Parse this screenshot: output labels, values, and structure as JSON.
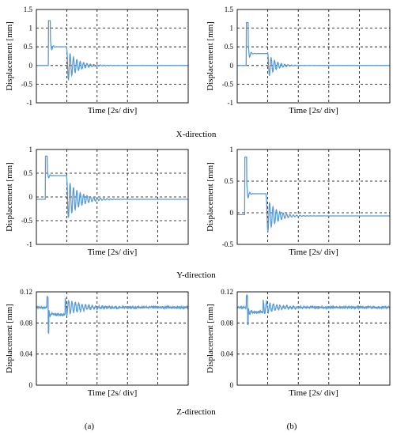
{
  "time_axis_label": "Time [2s/ div]",
  "row_captions": [
    "X-direction",
    "Y-direction",
    "Z-direction"
  ],
  "column_labels": [
    "(a)",
    "(b)"
  ],
  "chart_data": [
    {
      "id": "x-a",
      "type": "line",
      "ylabel": "Displacement [mm]",
      "xlabel": "Time [2s/ div]",
      "xlim": [
        0,
        5
      ],
      "ylim": [
        -1,
        1.5
      ],
      "yticks": [
        "1.5",
        "1",
        "0.5",
        "0",
        "-0.5",
        "-1"
      ],
      "grid": true,
      "line_color": "#5b9bd5",
      "signal": {
        "baseline": 0.0,
        "step_at": 0.4,
        "spike": 1.2,
        "plateau": 0.5,
        "release_at": 1.0,
        "final": 0.0,
        "decay_amp": 0.45,
        "decay_tau": 0.32,
        "cycles_per_div": 9
      }
    },
    {
      "id": "x-b",
      "type": "line",
      "ylabel": "Displacement [mm]",
      "xlabel": "Time [2s/ div]",
      "xlim": [
        0,
        5
      ],
      "ylim": [
        -1,
        1.5
      ],
      "yticks": [
        "1.5",
        "1",
        "0.5",
        "0",
        "-0.5",
        "-1"
      ],
      "grid": true,
      "line_color": "#5b9bd5",
      "signal": {
        "baseline": 0.0,
        "step_at": 0.3,
        "spike": 1.15,
        "plateau": 0.32,
        "release_at": 1.0,
        "final": 0.0,
        "decay_amp": 0.33,
        "decay_tau": 0.25,
        "cycles_per_div": 9
      }
    },
    {
      "id": "y-a",
      "type": "line",
      "ylabel": "Displacement [mm]",
      "xlabel": "Time [2s/ div]",
      "xlim": [
        0,
        5
      ],
      "ylim": [
        -1,
        1
      ],
      "yticks": [
        "1",
        "0.5",
        "0",
        "-0.5",
        "-1"
      ],
      "grid": true,
      "line_color": "#5b9bd5",
      "signal": {
        "baseline": -0.05,
        "step_at": 0.3,
        "spike": 0.86,
        "plateau": 0.45,
        "release_at": 1.0,
        "final": -0.05,
        "decay_amp": 0.45,
        "decay_tau": 0.38,
        "cycles_per_div": 9
      }
    },
    {
      "id": "y-b",
      "type": "line",
      "ylabel": "Displacement [mm]",
      "xlabel": "Time [2s/ div]",
      "xlim": [
        0,
        5
      ],
      "ylim": [
        -0.5,
        1
      ],
      "yticks": [
        "1",
        "0.5",
        "0",
        "-0.5"
      ],
      "grid": true,
      "line_color": "#5b9bd5",
      "signal": {
        "baseline": -0.03,
        "step_at": 0.25,
        "spike": 0.88,
        "plateau": 0.3,
        "release_at": 0.95,
        "final": -0.05,
        "decay_amp": 0.3,
        "decay_tau": 0.3,
        "cycles_per_div": 9
      }
    },
    {
      "id": "z-a",
      "type": "line",
      "ylabel": "Displacement [mm]",
      "xlabel": "Time [2s/ div]",
      "xlim": [
        0,
        5
      ],
      "ylim": [
        0,
        0.12
      ],
      "yticks": [
        "0.12",
        "0.08",
        "0.04",
        "0"
      ],
      "grid": true,
      "line_color": "#5b9bd5",
      "signal": {
        "baseline": 0.1,
        "step_at": 0.35,
        "spike": 0.113,
        "dip": 0.067,
        "plateau": 0.091,
        "release_at": 0.95,
        "final": 0.1,
        "decay_amp": 0.011,
        "decay_tau": 0.55,
        "cycles_per_div": 9,
        "noise": 0.0012
      }
    },
    {
      "id": "z-b",
      "type": "line",
      "ylabel": "Displacement [mm]",
      "xlabel": "Time [2s/ div]",
      "xlim": [
        0,
        5
      ],
      "ylim": [
        0,
        0.12
      ],
      "yticks": [
        "0.12",
        "0.08",
        "0.04",
        "0"
      ],
      "grid": true,
      "line_color": "#5b9bd5",
      "signal": {
        "baseline": 0.1,
        "step_at": 0.3,
        "spike": 0.115,
        "dip": 0.078,
        "plateau": 0.094,
        "release_at": 0.85,
        "final": 0.1,
        "decay_amp": 0.009,
        "decay_tau": 0.45,
        "cycles_per_div": 9,
        "noise": 0.0012
      }
    }
  ]
}
